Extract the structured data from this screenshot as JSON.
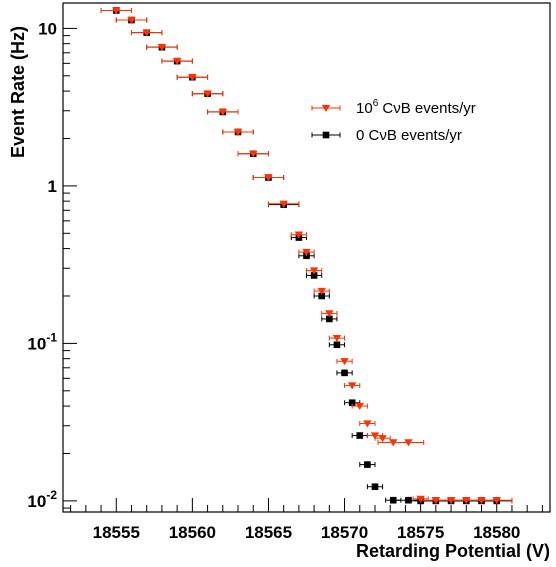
{
  "chart_data": {
    "type": "scatter",
    "xlabel": "Retarding Potential (V)",
    "ylabel": "Event Rate (Hz)",
    "xlim": [
      18551.5,
      18583.5
    ],
    "ylim": [
      0.0085,
      14.5
    ],
    "y_scale": "log",
    "x_ticks": [
      18555,
      18560,
      18565,
      18570,
      18575,
      18580
    ],
    "y_ticks": [
      {
        "value": 10,
        "base": "10",
        "exp": ""
      },
      {
        "value": 1,
        "base": "1",
        "exp": ""
      },
      {
        "value": 0.1,
        "base": "10",
        "exp": "-1"
      },
      {
        "value": 0.01,
        "base": "10",
        "exp": "-2"
      }
    ],
    "legend_position": "top-right",
    "series": [
      {
        "name_base": "10",
        "name_exp": "6",
        "name_rest": " CνB events/yr",
        "marker": "triangle-down",
        "color": "#ff3300",
        "points": [
          {
            "x": 18555,
            "y": 13.0,
            "xerr": 1.0
          },
          {
            "x": 18556,
            "y": 11.3,
            "xerr": 1.0
          },
          {
            "x": 18557,
            "y": 9.4,
            "xerr": 1.0
          },
          {
            "x": 18558,
            "y": 7.6,
            "xerr": 1.0
          },
          {
            "x": 18559,
            "y": 6.2,
            "xerr": 1.0
          },
          {
            "x": 18560,
            "y": 4.9,
            "xerr": 1.0
          },
          {
            "x": 18561,
            "y": 3.85,
            "xerr": 1.0
          },
          {
            "x": 18562,
            "y": 2.95,
            "xerr": 1.0
          },
          {
            "x": 18563,
            "y": 2.2,
            "xerr": 1.0
          },
          {
            "x": 18564,
            "y": 1.6,
            "xerr": 1.0
          },
          {
            "x": 18565,
            "y": 1.13,
            "xerr": 1.0
          },
          {
            "x": 18566,
            "y": 0.77,
            "xerr": 1.0
          },
          {
            "x": 18567,
            "y": 0.49,
            "xerr": 0.5
          },
          {
            "x": 18567.5,
            "y": 0.38,
            "xerr": 0.5
          },
          {
            "x": 18568,
            "y": 0.29,
            "xerr": 0.5
          },
          {
            "x": 18568.5,
            "y": 0.215,
            "xerr": 0.5
          },
          {
            "x": 18569,
            "y": 0.155,
            "xerr": 0.5
          },
          {
            "x": 18569.5,
            "y": 0.108,
            "xerr": 0.5
          },
          {
            "x": 18570,
            "y": 0.077,
            "xerr": 0.5
          },
          {
            "x": 18570.5,
            "y": 0.054,
            "xerr": 0.5
          },
          {
            "x": 18571,
            "y": 0.04,
            "xerr": 0.5
          },
          {
            "x": 18571.5,
            "y": 0.031,
            "xerr": 0.5
          },
          {
            "x": 18572,
            "y": 0.026,
            "xerr": 0.5
          },
          {
            "x": 18572.5,
            "y": 0.025,
            "xerr": 0.5
          },
          {
            "x": 18573.2,
            "y": 0.0235,
            "xerr": 1.0
          },
          {
            "x": 18574.2,
            "y": 0.0235,
            "xerr": 1.0
          },
          {
            "x": 18575,
            "y": 0.0103,
            "xerr": 0.5
          },
          {
            "x": 18576,
            "y": 0.0101,
            "xerr": 1.0
          },
          {
            "x": 18577,
            "y": 0.0101,
            "xerr": 1.0
          },
          {
            "x": 18578,
            "y": 0.0101,
            "xerr": 1.0
          },
          {
            "x": 18579,
            "y": 0.0101,
            "xerr": 1.0
          },
          {
            "x": 18580,
            "y": 0.0101,
            "xerr": 1.0
          }
        ]
      },
      {
        "name_base": "",
        "name_exp": "",
        "name_rest": "0 CνB events/yr",
        "marker": "square",
        "color": "#000000",
        "points": [
          {
            "x": 18555,
            "y": 13.0,
            "xerr": 1.0
          },
          {
            "x": 18556,
            "y": 11.3,
            "xerr": 1.0
          },
          {
            "x": 18557,
            "y": 9.4,
            "xerr": 1.0
          },
          {
            "x": 18558,
            "y": 7.6,
            "xerr": 1.0
          },
          {
            "x": 18559,
            "y": 6.2,
            "xerr": 1.0
          },
          {
            "x": 18560,
            "y": 4.9,
            "xerr": 1.0
          },
          {
            "x": 18561,
            "y": 3.85,
            "xerr": 1.0
          },
          {
            "x": 18562,
            "y": 2.95,
            "xerr": 1.0
          },
          {
            "x": 18563,
            "y": 2.2,
            "xerr": 1.0
          },
          {
            "x": 18564,
            "y": 1.6,
            "xerr": 1.0
          },
          {
            "x": 18565,
            "y": 1.13,
            "xerr": 1.0
          },
          {
            "x": 18566,
            "y": 0.76,
            "xerr": 1.0
          },
          {
            "x": 18567,
            "y": 0.47,
            "xerr": 0.5
          },
          {
            "x": 18567.5,
            "y": 0.36,
            "xerr": 0.5
          },
          {
            "x": 18568,
            "y": 0.27,
            "xerr": 0.5
          },
          {
            "x": 18568.5,
            "y": 0.2,
            "xerr": 0.5
          },
          {
            "x": 18569,
            "y": 0.143,
            "xerr": 0.5
          },
          {
            "x": 18569.5,
            "y": 0.098,
            "xerr": 0.5
          },
          {
            "x": 18570,
            "y": 0.065,
            "xerr": 0.5
          },
          {
            "x": 18570.5,
            "y": 0.042,
            "xerr": 0.5
          },
          {
            "x": 18571,
            "y": 0.026,
            "xerr": 0.5
          },
          {
            "x": 18571.5,
            "y": 0.017,
            "xerr": 0.5
          },
          {
            "x": 18572,
            "y": 0.0123,
            "xerr": 0.5
          },
          {
            "x": 18573.2,
            "y": 0.0101,
            "xerr": 0.5
          },
          {
            "x": 18574.2,
            "y": 0.0101,
            "xerr": 1.0
          },
          {
            "x": 18575,
            "y": 0.01,
            "xerr": 1.0
          },
          {
            "x": 18576,
            "y": 0.01,
            "xerr": 1.0
          },
          {
            "x": 18577,
            "y": 0.01,
            "xerr": 1.0
          },
          {
            "x": 18578,
            "y": 0.01,
            "xerr": 1.0
          },
          {
            "x": 18579,
            "y": 0.01,
            "xerr": 1.0
          },
          {
            "x": 18580,
            "y": 0.01,
            "xerr": 1.0
          }
        ]
      }
    ]
  }
}
